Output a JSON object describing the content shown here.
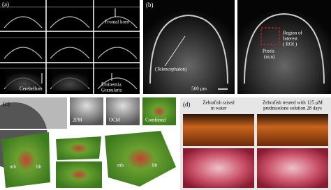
{
  "panels": {
    "a": {
      "label": "(a)",
      "frontal_horn": "Frontal horn",
      "cerebellum": "Cerebellum",
      "eminentia": [
        "Eminentia",
        "Granularis"
      ]
    },
    "b": {
      "label": "(b)",
      "telencephalon": "(Telencephalon)",
      "scale": "500 µm",
      "roi": [
        "Region of",
        "Interest",
        "( ROI )"
      ],
      "pixels": [
        "Pixels",
        "(m,n)"
      ]
    },
    "c": {
      "label": "(c)",
      "tiles": [
        "2PM",
        "OCM",
        "Combined"
      ],
      "mb": "mb",
      "hb": "hb"
    },
    "d": {
      "label": "(d)",
      "captions": [
        [
          "Zebrafish raised",
          "in water"
        ],
        [
          "Zebrafish treated with 125 µM",
          "prednisolone solution 28 days"
        ]
      ]
    }
  }
}
